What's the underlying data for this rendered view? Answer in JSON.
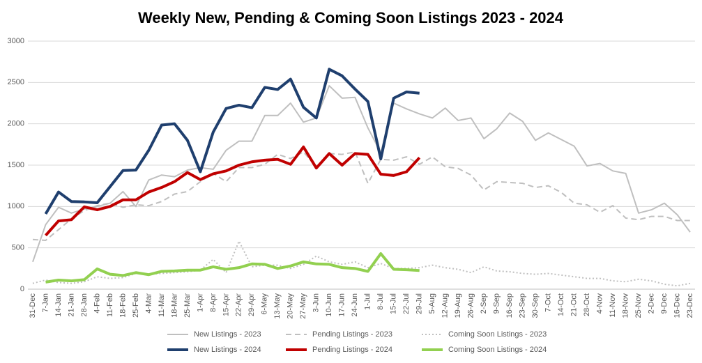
{
  "chart_data": {
    "type": "line",
    "title": "Weekly New, Pending & Coming Soon Listings 2023 - 2024",
    "categories": [
      "31-Dec",
      "7-Jan",
      "14-Jan",
      "21-Jan",
      "28-Jan",
      "4-Feb",
      "11-Feb",
      "18-Feb",
      "25-Feb",
      "4-Mar",
      "11-Mar",
      "18-Mar",
      "25-Mar",
      "1-Apr",
      "8-Apr",
      "15-Apr",
      "22-Apr",
      "29-Apr",
      "6-May",
      "13-May",
      "20-May",
      "27-May",
      "3-Jun",
      "10-Jun",
      "17-Jun",
      "24-Jun",
      "1-Jul",
      "8-Jul",
      "15-Jul",
      "22-Jul",
      "29-Jul",
      "5-Aug",
      "12-Aug",
      "19-Aug",
      "26-Aug",
      "2-Sep",
      "9-Sep",
      "16-Sep",
      "23-Sep",
      "30-Sep",
      "7-Oct",
      "14-Oct",
      "21-Oct",
      "28-Oct",
      "4-Nov",
      "11-Nov",
      "18-Nov",
      "25-Nov",
      "2-Dec",
      "9-Dec",
      "16-Dec",
      "23-Dec"
    ],
    "series": [
      {
        "name": "New Listings - 2023",
        "color": "#bfbfbf",
        "dash": "solid",
        "width": 2,
        "values": [
          330,
          780,
          990,
          920,
          970,
          1000,
          1040,
          1180,
          1000,
          1320,
          1380,
          1360,
          1440,
          1470,
          1450,
          1680,
          1790,
          1790,
          2100,
          2100,
          2250,
          2020,
          2070,
          2460,
          2310,
          2320,
          1950,
          1650,
          2250,
          2180,
          2120,
          2070,
          2190,
          2040,
          2070,
          1820,
          1940,
          2130,
          2030,
          1800,
          1890,
          1810,
          1730,
          1490,
          1520,
          1430,
          1400,
          920,
          960,
          1040,
          900,
          690
        ]
      },
      {
        "name": "Pending Listings - 2023",
        "color": "#bfbfbf",
        "dash": "dashed",
        "width": 2,
        "values": [
          600,
          590,
          720,
          850,
          950,
          1010,
          1040,
          990,
          1020,
          1010,
          1060,
          1150,
          1180,
          1300,
          1400,
          1300,
          1470,
          1470,
          1510,
          1630,
          1580,
          1660,
          1480,
          1640,
          1630,
          1660,
          1280,
          1570,
          1560,
          1600,
          1510,
          1600,
          1480,
          1460,
          1380,
          1200,
          1300,
          1290,
          1280,
          1230,
          1250,
          1170,
          1040,
          1020,
          930,
          1010,
          860,
          840,
          880,
          880,
          830,
          830
        ]
      },
      {
        "name": "Coming Soon Listings - 2023",
        "color": "#bfbfbf",
        "dash": "dotted",
        "width": 2,
        "values": [
          70,
          110,
          80,
          70,
          90,
          150,
          130,
          140,
          190,
          180,
          190,
          200,
          210,
          230,
          360,
          200,
          580,
          270,
          290,
          290,
          250,
          300,
          400,
          330,
          300,
          330,
          260,
          310,
          250,
          250,
          260,
          290,
          260,
          240,
          200,
          270,
          220,
          210,
          190,
          180,
          190,
          170,
          150,
          130,
          130,
          100,
          90,
          120,
          100,
          60,
          40,
          70
        ]
      },
      {
        "name": "New Listings - 2024",
        "color": "#1f3f6e",
        "dash": "solid",
        "width": 4,
        "values": [
          null,
          910,
          1175,
          1060,
          1055,
          1045,
          1240,
          1435,
          1440,
          1680,
          1985,
          2000,
          1800,
          1420,
          1900,
          2185,
          2225,
          2195,
          2440,
          2415,
          2540,
          2200,
          2070,
          2660,
          2580,
          2420,
          2270,
          1575,
          2310,
          2385,
          2370,
          null,
          null,
          null,
          null,
          null,
          null,
          null,
          null,
          null,
          null,
          null,
          null,
          null,
          null,
          null,
          null,
          null,
          null,
          null,
          null,
          null
        ]
      },
      {
        "name": "Pending Listings - 2024",
        "color": "#c00000",
        "dash": "solid",
        "width": 4,
        "values": [
          null,
          650,
          825,
          840,
          995,
          960,
          1000,
          1080,
          1080,
          1175,
          1230,
          1300,
          1410,
          1325,
          1395,
          1430,
          1500,
          1540,
          1560,
          1570,
          1510,
          1720,
          1465,
          1640,
          1500,
          1640,
          1630,
          1390,
          1375,
          1420,
          1590,
          null,
          null,
          null,
          null,
          null,
          null,
          null,
          null,
          null,
          null,
          null,
          null,
          null,
          null,
          null,
          null,
          null,
          null,
          null,
          null,
          null
        ]
      },
      {
        "name": "Coming Soon Listings - 2024",
        "color": "#92d050",
        "dash": "solid",
        "width": 4,
        "values": [
          null,
          85,
          110,
          100,
          115,
          245,
          180,
          165,
          200,
          175,
          215,
          220,
          230,
          230,
          270,
          240,
          260,
          305,
          300,
          250,
          280,
          330,
          305,
          300,
          260,
          250,
          215,
          430,
          240,
          235,
          225,
          null,
          null,
          null,
          null,
          null,
          null,
          null,
          null,
          null,
          null,
          null,
          null,
          null,
          null,
          null,
          null,
          null,
          null,
          null,
          null,
          null
        ]
      }
    ],
    "ylim": [
      0,
      3000
    ],
    "yticks": [
      0,
      500,
      1000,
      1500,
      2000,
      2500,
      3000
    ],
    "grid": true,
    "legend": "bottom"
  }
}
